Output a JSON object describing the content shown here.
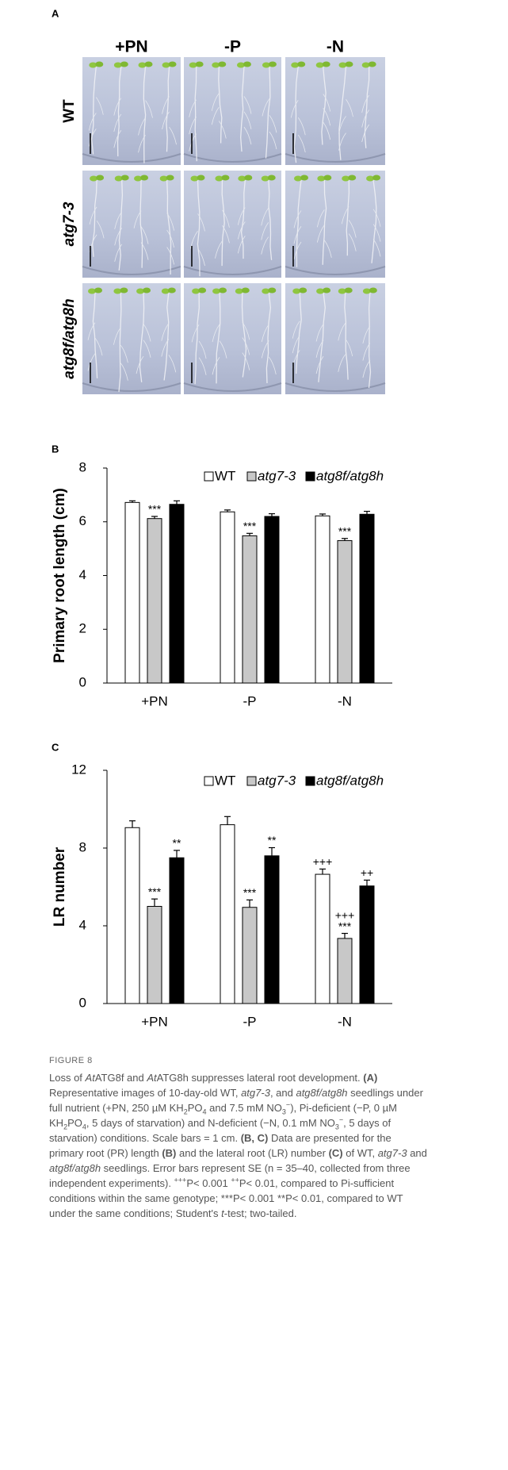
{
  "panel_a": {
    "label": "A",
    "columns": [
      "+PN",
      "-P",
      "-N"
    ],
    "rows": [
      "WT",
      "atg7-3",
      "atg8f/atg8h"
    ]
  },
  "chart_data": [
    {
      "type": "bar",
      "panel": "B",
      "ylabel": "Primary root length (cm)",
      "categories": [
        "+PN",
        "-P",
        "-N"
      ],
      "ylim": [
        0,
        8
      ],
      "yticks": [
        0,
        2,
        4,
        6,
        8
      ],
      "legend": "upper right",
      "series": [
        {
          "name": "WT",
          "color": "#ffffff",
          "values": [
            6.72,
            6.37,
            6.22
          ],
          "errors": [
            0.06,
            0.07,
            0.07
          ]
        },
        {
          "name": "atg7-3",
          "color": "#c8c8c8",
          "values": [
            6.12,
            5.48,
            5.3
          ],
          "errors": [
            0.08,
            0.09,
            0.08
          ],
          "annotations": [
            [
              "***"
            ],
            [
              "***"
            ],
            [
              "***"
            ]
          ]
        },
        {
          "name": "atg8f/atg8h",
          "color": "#000000",
          "values": [
            6.65,
            6.2,
            6.28
          ],
          "errors": [
            0.13,
            0.1,
            0.11
          ]
        }
      ]
    },
    {
      "type": "bar",
      "panel": "C",
      "ylabel": "LR number",
      "categories": [
        "+PN",
        "-P",
        "-N"
      ],
      "ylim": [
        0,
        12
      ],
      "yticks": [
        0,
        4,
        8,
        12
      ],
      "legend": "upper right",
      "series": [
        {
          "name": "WT",
          "color": "#ffffff",
          "values": [
            9.05,
            9.2,
            6.65
          ],
          "errors": [
            0.35,
            0.42,
            0.27
          ],
          "annotations": [
            null,
            null,
            [
              "+++"
            ]
          ]
        },
        {
          "name": "atg7-3",
          "color": "#c8c8c8",
          "values": [
            5.0,
            4.95,
            3.35
          ],
          "errors": [
            0.38,
            0.38,
            0.26
          ],
          "annotations": [
            [
              "***"
            ],
            [
              "***"
            ],
            [
              "+++",
              "***"
            ]
          ]
        },
        {
          "name": "atg8f/atg8h",
          "color": "#000000",
          "values": [
            7.5,
            7.6,
            6.05
          ],
          "errors": [
            0.38,
            0.42,
            0.3
          ],
          "annotations": [
            [
              "**"
            ],
            [
              "**"
            ],
            [
              "++"
            ]
          ]
        }
      ]
    }
  ],
  "caption": {
    "label": "FIGURE 8",
    "runs": [
      "Loss of ",
      "At",
      "ATG8f and ",
      "At",
      "ATG8h suppresses lateral root development. ",
      "(A)",
      " Representative images of 10-day-old WT, ",
      "atg7-3",
      ", and ",
      "atg8f/atg8h",
      " seedlings under full nutrient (+PN, 250 µM KH",
      "2",
      "PO",
      "4",
      " and 7.5 mM NO",
      "3",
      "−",
      "), Pi-deficient (−P, 0 µM KH",
      "2",
      "PO",
      "4",
      ", 5 days of starvation) and N-deficient (−N, 0.1 mM NO",
      "3",
      "−",
      ", 5 days of starvation) conditions. Scale bars = 1 cm. ",
      "(B, C)",
      " Data are presented for the primary root (PR) length ",
      "(B)",
      " and the lateral root (LR) number ",
      "(C)",
      " of WT, ",
      "atg7-3",
      " and ",
      "atg8f/atg8h",
      " seedlings. Error bars represent SE (n = 35–40, collected from three independent experiments). ",
      "+++",
      "P< 0.001 ",
      "++",
      "P< 0.01, compared to Pi-sufficient conditions within the same genotype; ***P< 0.001 **P< 0.01, compared to WT under the same conditions; Student's ",
      "t",
      "-test; two-tailed."
    ]
  }
}
